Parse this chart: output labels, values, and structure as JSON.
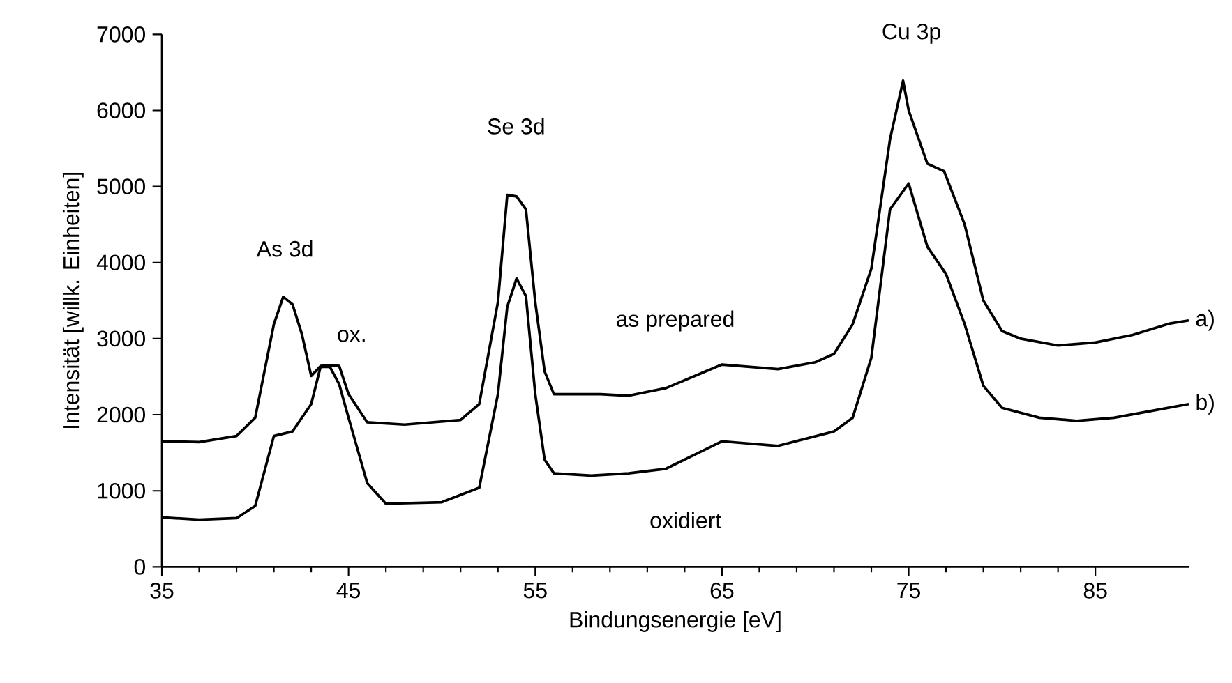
{
  "chart_data": {
    "type": "line",
    "xlabel": "Bindungsenergie [eV]",
    "ylabel": "Intensität [willk. Einheiten]",
    "xlim": [
      35,
      90
    ],
    "xticks": [
      35,
      45,
      55,
      65,
      75,
      85
    ],
    "ylim": [
      0,
      7000
    ],
    "yticks": [
      0,
      1000,
      2000,
      3000,
      4000,
      5000,
      6000,
      7000
    ],
    "grid": false,
    "legend": false,
    "marker": "none",
    "line_style": "solid",
    "series": [
      {
        "name": "a)",
        "color": "#000000",
        "x": [
          35,
          37,
          39,
          40,
          41,
          41.5,
          42,
          42.5,
          43,
          43.5,
          44,
          44.5,
          45,
          46,
          48,
          51,
          52,
          53,
          53.5,
          54,
          54.5,
          55,
          55.5,
          56,
          58.5,
          60,
          62,
          65,
          68,
          70,
          71,
          72,
          73,
          74,
          74.7,
          75,
          76,
          76.9,
          78,
          79,
          80,
          81,
          83,
          85,
          87,
          89,
          90
        ],
        "values": [
          1650,
          1640,
          1720,
          1960,
          3190,
          3550,
          3450,
          3060,
          2510,
          2640,
          2650,
          2640,
          2270,
          1900,
          1870,
          1930,
          2140,
          3480,
          4890,
          4870,
          4700,
          3480,
          2570,
          2270,
          2270,
          2250,
          2350,
          2660,
          2600,
          2690,
          2800,
          3190,
          3920,
          5620,
          6390,
          6000,
          5300,
          5200,
          4500,
          3500,
          3100,
          3000,
          2910,
          2950,
          3050,
          3200,
          3240
        ]
      },
      {
        "name": "b)",
        "color": "#000000",
        "x": [
          35,
          37,
          39,
          40,
          41,
          42,
          43,
          43.5,
          44,
          44.5,
          45,
          46,
          47,
          50,
          52,
          53,
          53.5,
          54,
          54.5,
          55,
          55.5,
          56,
          58,
          60,
          62,
          65,
          68,
          71,
          72,
          73,
          74,
          75,
          76,
          77,
          78,
          79,
          80,
          82,
          84,
          86,
          88,
          90
        ],
        "values": [
          650,
          620,
          640,
          800,
          1720,
          1780,
          2140,
          2630,
          2630,
          2400,
          1960,
          1100,
          830,
          850,
          1040,
          2270,
          3420,
          3790,
          3560,
          2270,
          1410,
          1230,
          1200,
          1230,
          1290,
          1650,
          1590,
          1780,
          1960,
          2750,
          4700,
          5040,
          4210,
          3850,
          3190,
          2380,
          2090,
          1960,
          1920,
          1960,
          2050,
          2140
        ]
      }
    ],
    "annotations": [
      "As 3d",
      "ox.",
      "Se 3d",
      "as prepared",
      "oxidiert",
      "Cu 3p"
    ]
  }
}
